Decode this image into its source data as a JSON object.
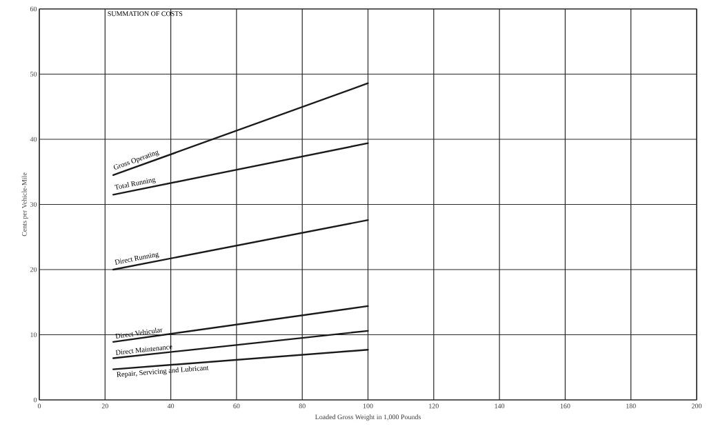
{
  "chart_data": {
    "type": "line",
    "title": "SUMMATION OF COSTS",
    "xlabel": "Loaded Gross Weight in 1,000 Pounds",
    "ylabel": "Cents per Vehicle-Mile",
    "x": [
      22.5,
      100
    ],
    "xlim": [
      0,
      200
    ],
    "xticks": [
      0,
      20,
      40,
      60,
      80,
      100,
      120,
      140,
      160,
      180,
      200
    ],
    "ylim": [
      0,
      60
    ],
    "yticks": [
      0,
      10,
      20,
      30,
      40,
      50,
      60
    ],
    "grid": true,
    "marker": "none",
    "line_style": "solid",
    "series": [
      {
        "name": "Gross Operating",
        "color": "#1a1a1a",
        "values": [
          34.5,
          48.6
        ]
      },
      {
        "name": "Total Running",
        "color": "#1a1a1a",
        "values": [
          31.5,
          39.4
        ]
      },
      {
        "name": "Direct Running",
        "color": "#1a1a1a",
        "values": [
          20.0,
          27.6
        ]
      },
      {
        "name": "Direct Vehicular",
        "color": "#1a1a1a",
        "values": [
          8.9,
          14.4
        ]
      },
      {
        "name": "Direct Maintenance",
        "color": "#1a1a1a",
        "values": [
          6.4,
          10.6
        ]
      },
      {
        "name": "Repair, Servicing and Lubricant",
        "color": "#1a1a1a",
        "values": [
          4.7,
          7.7
        ]
      }
    ]
  }
}
